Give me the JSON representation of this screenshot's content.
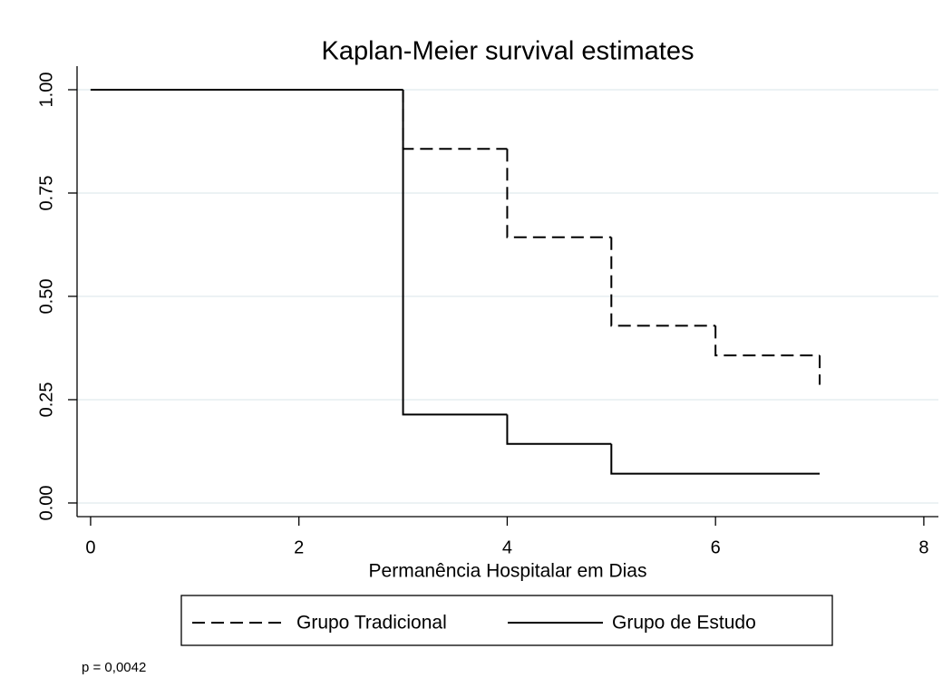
{
  "chart_data": {
    "type": "line",
    "drawstyle": "steps-post",
    "title": "Kaplan-Meier survival estimates",
    "xlabel": "Permanência Hospitalar em Dias",
    "annotation": "p = 0,0042",
    "xlim": [
      -0.13,
      8.14
    ],
    "ylim": [
      -0.033,
      1.057
    ],
    "xticks": [
      0,
      2,
      4,
      6,
      8
    ],
    "yticks": [
      {
        "value": 0,
        "label": "0.00"
      },
      {
        "value": 0.25,
        "label": "0.25"
      },
      {
        "value": 0.5,
        "label": "0.50"
      },
      {
        "value": 0.75,
        "label": "0.75"
      },
      {
        "value": 1,
        "label": "1.00"
      }
    ],
    "grid": true,
    "legend": "bottom",
    "series": [
      {
        "name": "Grupo Tradicional",
        "color": "#000000",
        "dash": "dashed",
        "x": [
          0,
          3,
          4,
          5,
          6,
          7
        ],
        "values": [
          1,
          0.857,
          0.643,
          0.429,
          0.357,
          0.286
        ]
      },
      {
        "name": "Grupo de Estudo",
        "color": "#000000",
        "dash": "solid",
        "x": [
          0,
          3,
          4,
          5,
          7
        ],
        "values": [
          1,
          0.214,
          0.143,
          0.071,
          0.071
        ]
      }
    ]
  }
}
